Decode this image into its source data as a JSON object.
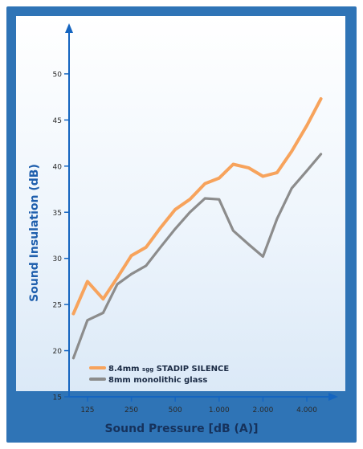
{
  "chart_data": {
    "type": "line",
    "xlabel": "Sound Pressure [dB (A)]",
    "ylabel": "Sound Insulation (dB)",
    "x_tick_labels": [
      "125",
      "250",
      "500",
      "1.000",
      "2.000",
      "4.000"
    ],
    "y_ticks": [
      15,
      20,
      25,
      30,
      35,
      40,
      45,
      50
    ],
    "ylim": [
      15,
      54
    ],
    "x_range_log2_rel_125": [
      -0.42,
      5.42
    ],
    "grid": false,
    "legend_placement": "lower-left",
    "x": [
      100,
      125,
      160,
      200,
      250,
      315,
      400,
      500,
      630,
      800,
      1000,
      1250,
      1600,
      2000,
      2500,
      3150,
      4000,
      5000
    ],
    "series": [
      {
        "name": "8.4mm sgg STADIP SILENCE",
        "color": "#f7a35c",
        "values": [
          24.0,
          27.5,
          25.6,
          27.9,
          30.3,
          31.2,
          33.4,
          35.3,
          36.4,
          38.1,
          38.7,
          40.2,
          39.8,
          38.9,
          39.3,
          41.6,
          44.4,
          47.3
        ]
      },
      {
        "name": "8mm monolithic glass",
        "color": "#8c8c8c",
        "values": [
          19.2,
          23.3,
          24.1,
          27.2,
          28.3,
          29.2,
          31.3,
          33.2,
          35.0,
          36.5,
          36.4,
          33.0,
          31.5,
          30.2,
          34.3,
          37.6,
          39.5,
          41.3
        ]
      }
    ],
    "legend": {
      "items": [
        {
          "prefix": "8.4mm ",
          "smallcaps": "sgg",
          "suffix": " STADIP SILENCE",
          "color": "#f7a35c"
        },
        {
          "prefix": "8mm monolithic glass",
          "smallcaps": "",
          "suffix": "",
          "color": "#8c8c8c"
        }
      ]
    },
    "colors": {
      "frame": "#2f74b6",
      "axis": "#1565c0",
      "axis_title": "#1f5fad",
      "x_title": "#16325c"
    }
  }
}
